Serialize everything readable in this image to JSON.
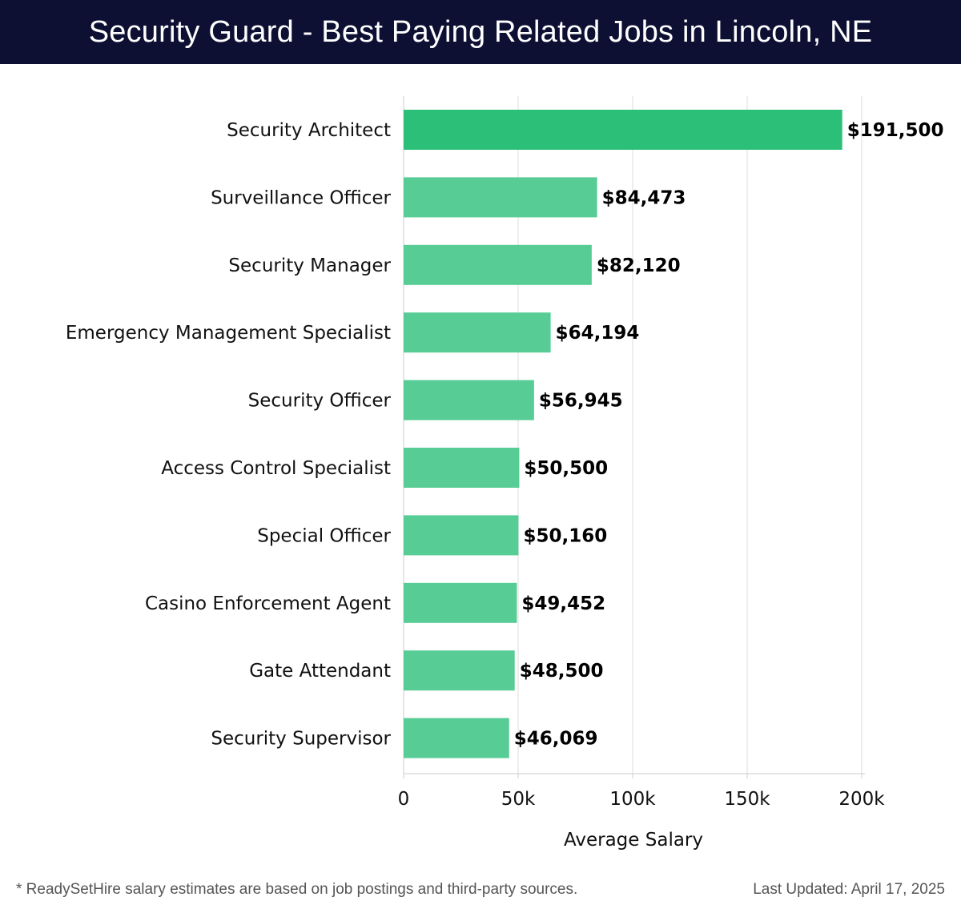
{
  "header": {
    "title": "Security Guard - Best Paying Related Jobs in Lincoln, NE"
  },
  "footer": {
    "note": "* ReadySetHire salary estimates are based on job postings and third-party sources.",
    "updated": "Last Updated: April 17, 2025"
  },
  "colors": {
    "header_bg": "#0d1033",
    "bar_top": "#2bbf77",
    "bar": "#57cd95",
    "grid": "#dddddd"
  },
  "chart_data": {
    "type": "bar",
    "orientation": "horizontal",
    "categories": [
      "Security Architect",
      "Surveillance Officer",
      "Security Manager",
      "Emergency Management Specialist",
      "Security Officer",
      "Access Control Specialist",
      "Special Officer",
      "Casino Enforcement Agent",
      "Gate Attendant",
      "Security Supervisor"
    ],
    "values": [
      191500,
      84473,
      82120,
      64194,
      56945,
      50500,
      50160,
      49452,
      48500,
      46069
    ],
    "value_labels": [
      "$191,500",
      "$84,473",
      "$82,120",
      "$64,194",
      "$56,945",
      "$50,500",
      "$50,160",
      "$49,452",
      "$48,500",
      "$46,069"
    ],
    "xlabel": "Average Salary",
    "ylabel": "",
    "xlim": [
      0,
      200000
    ],
    "xticks": [
      0,
      50000,
      100000,
      150000,
      200000
    ],
    "xtick_labels": [
      "0",
      "50k",
      "100k",
      "150k",
      "200k"
    ],
    "grid": "vertical"
  }
}
